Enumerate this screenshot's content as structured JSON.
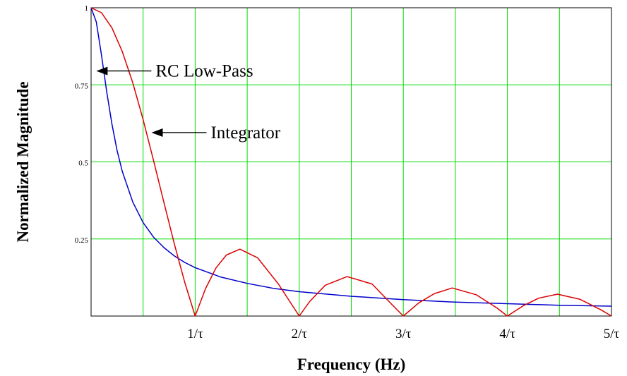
{
  "chart_data": {
    "type": "line",
    "xlabel": "Frequency (Hz)",
    "ylabel": "Normalized Magnitude",
    "xlim": [
      0,
      5
    ],
    "ylim": [
      0,
      1
    ],
    "x_ticks": [
      {
        "value": 1,
        "label": "1/τ"
      },
      {
        "value": 2,
        "label": "2/τ"
      },
      {
        "value": 3,
        "label": "3/τ"
      },
      {
        "value": 4,
        "label": "4/τ"
      },
      {
        "value": 5,
        "label": "5/τ"
      }
    ],
    "x_gridlines": [
      0.5,
      1,
      1.5,
      2,
      2.5,
      3,
      3.5,
      4,
      4.5,
      5
    ],
    "y_ticks": [
      {
        "value": 0.25,
        "label": "0.25"
      },
      {
        "value": 0.5,
        "label": "0.5"
      },
      {
        "value": 0.75,
        "label": "0.75"
      },
      {
        "value": 1,
        "label": "1"
      }
    ],
    "grid": true,
    "grid_color": "#00dd00",
    "series": [
      {
        "key": "rc",
        "color": "#0000cc",
        "x": [
          0,
          0.05,
          0.1,
          0.15,
          0.2,
          0.25,
          0.3,
          0.4,
          0.5,
          0.6,
          0.7,
          0.8,
          0.9,
          1,
          1.25,
          1.5,
          1.75,
          2,
          2.5,
          3,
          3.5,
          4,
          4.5,
          5
        ],
        "y": [
          1,
          0.954,
          0.847,
          0.728,
          0.623,
          0.537,
          0.469,
          0.37,
          0.303,
          0.256,
          0.222,
          0.195,
          0.174,
          0.157,
          0.126,
          0.106,
          0.09,
          0.079,
          0.064,
          0.053,
          0.045,
          0.04,
          0.035,
          0.032
        ]
      },
      {
        "key": "integrator",
        "color": "#dd0000",
        "x": [
          0,
          0.1,
          0.2,
          0.3,
          0.4,
          0.5,
          0.6,
          0.7,
          0.8,
          0.9,
          1,
          1.1,
          1.2,
          1.3,
          1.43,
          1.6,
          1.8,
          2,
          2.1,
          2.25,
          2.46,
          2.7,
          2.9,
          3,
          3.15,
          3.3,
          3.47,
          3.7,
          3.9,
          4,
          4.15,
          4.3,
          4.48,
          4.7,
          4.9,
          5
        ],
        "y": [
          1,
          0.984,
          0.935,
          0.858,
          0.757,
          0.637,
          0.505,
          0.368,
          0.234,
          0.109,
          0,
          0.089,
          0.156,
          0.198,
          0.217,
          0.189,
          0.104,
          0,
          0.047,
          0.1,
          0.128,
          0.104,
          0.034,
          0,
          0.043,
          0.073,
          0.091,
          0.069,
          0.026,
          0,
          0.033,
          0.058,
          0.071,
          0.054,
          0.02,
          0
        ]
      }
    ],
    "annotations": [
      {
        "target": "rc",
        "text": "RC Low-Pass",
        "x": 0.05,
        "y": 0.795
      },
      {
        "target": "integrator",
        "text": "Integrator",
        "x": 0.58,
        "y": 0.595
      }
    ]
  }
}
